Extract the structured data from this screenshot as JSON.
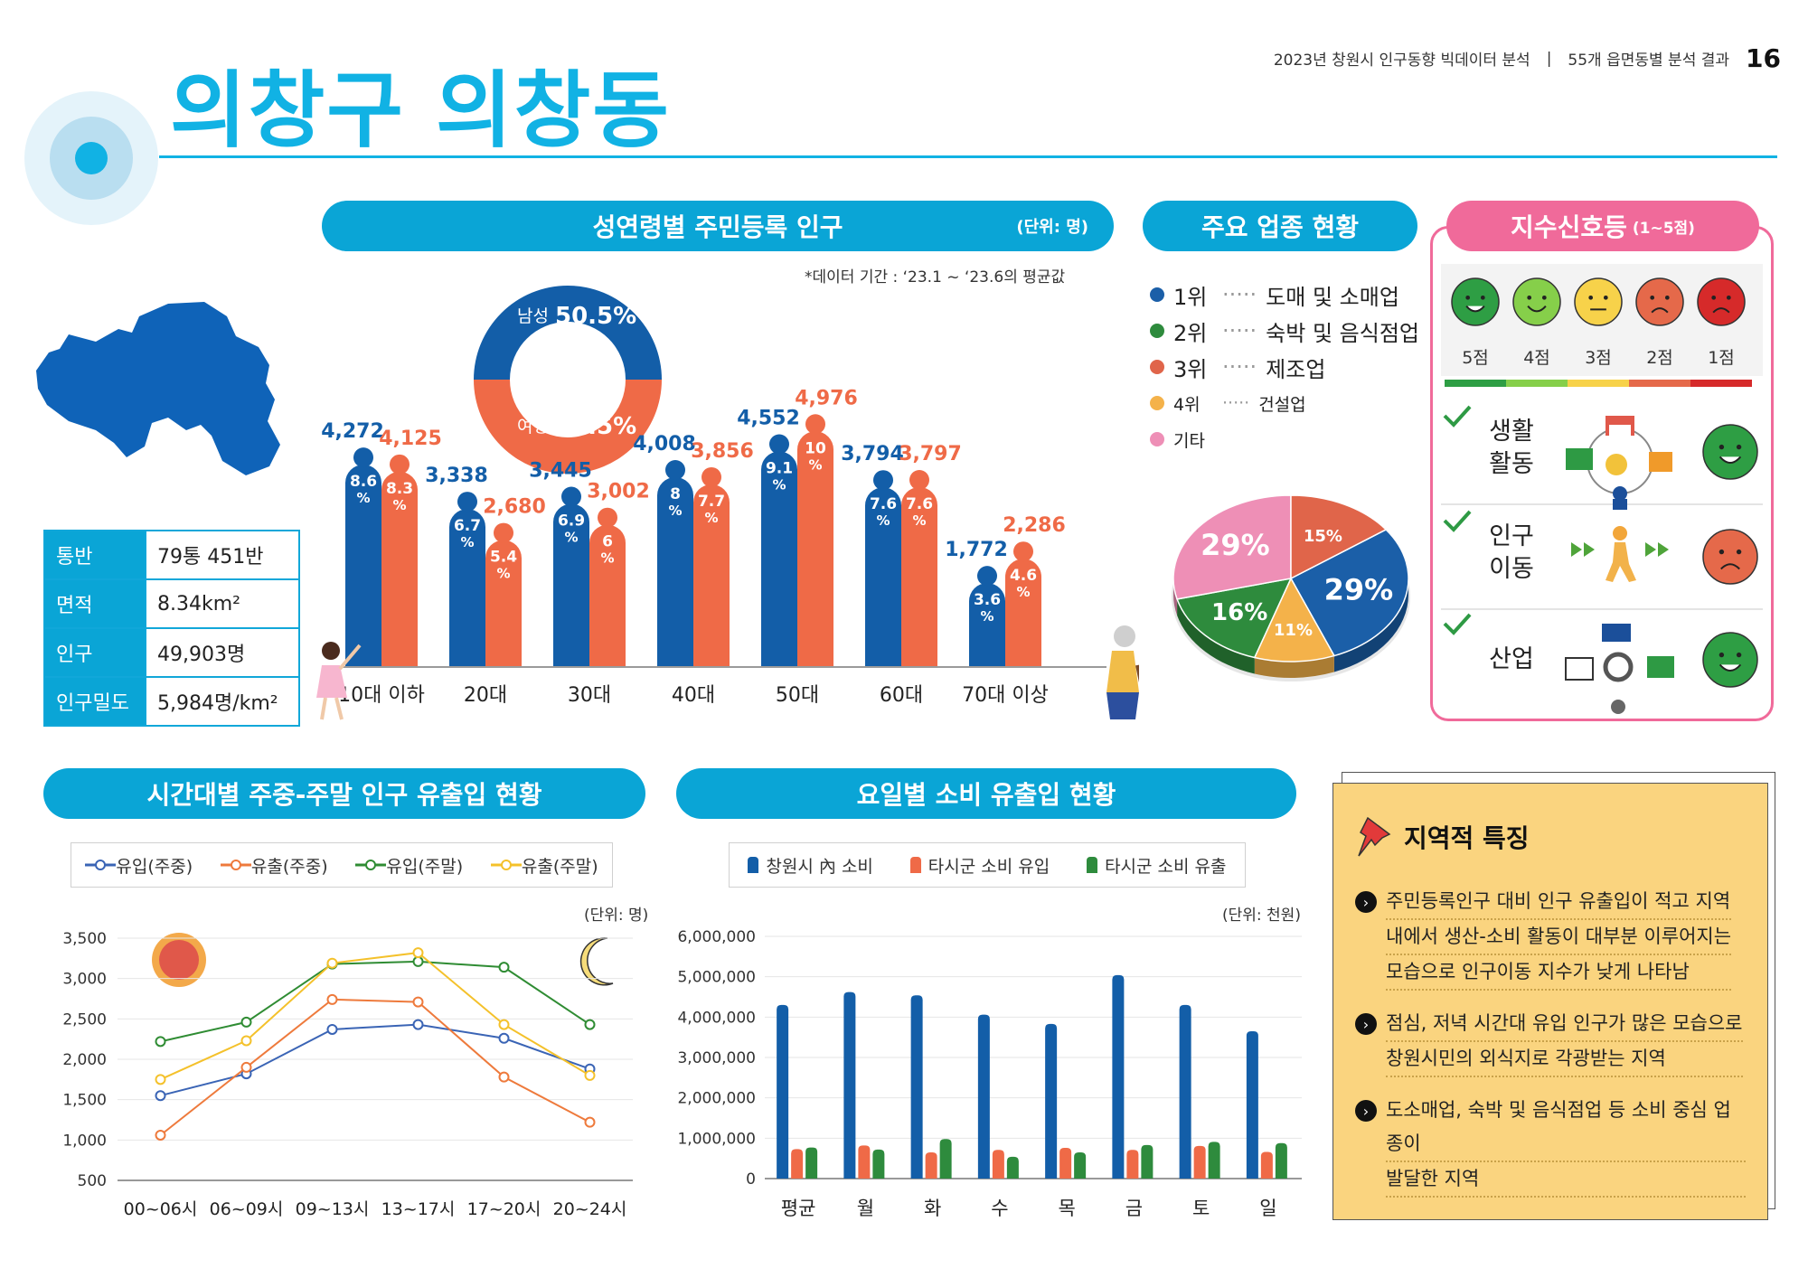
{
  "header": {
    "doc_title": "2023년 창원시 인구동향 빅데이터 분석",
    "section": "55개 읍면동별 분석 결과",
    "page": "16"
  },
  "title": "의창구 의창동",
  "info": [
    {
      "key": "통반",
      "value": "79통 451반"
    },
    {
      "key": "면적",
      "value": "8.34km²"
    },
    {
      "key": "인구",
      "value": "49,903명"
    },
    {
      "key": "인구밀도",
      "value": "5,984명/km²"
    }
  ],
  "population": {
    "title": "성연령별 주민등록 인구",
    "unit": "(단위: 명)",
    "period_note": "*데이터 기간 : ‘23.1 ~ ‘23.6의 평균값",
    "male_label": "남성",
    "male_pct": "50.5%",
    "female_label": "여성",
    "female_pct": "49.5%",
    "colors": {
      "male": "#135ea8",
      "female": "#ef6a47"
    }
  },
  "industry": {
    "title": "주요 업종 현황",
    "legend": [
      {
        "rank": "1위",
        "name": "도매 및 소매업",
        "color": "#1b5fa8"
      },
      {
        "rank": "2위",
        "name": "숙박 및 음식점업",
        "color": "#2e8b3d"
      },
      {
        "rank": "3위",
        "name": "제조업",
        "color": "#e0654a"
      },
      {
        "rank": "4위",
        "name": "건설업",
        "color": "#f4b24a"
      },
      {
        "rank": "기타",
        "name": "",
        "color": "#ee8fb6"
      }
    ]
  },
  "signal": {
    "title": "지수신호등",
    "range": "(1~5점)",
    "scores": [
      "5점",
      "4점",
      "3점",
      "2점",
      "1점"
    ],
    "face_colors": [
      "#2e9e44",
      "#86cf4a",
      "#f7d24a",
      "#e5694a",
      "#d62a2a"
    ],
    "items": [
      {
        "label1": "생활",
        "label2": "활동",
        "score": 5
      },
      {
        "label1": "인구",
        "label2": "이동",
        "score": 2
      },
      {
        "label1": "산업",
        "label2": "",
        "score": 5
      }
    ]
  },
  "flow": {
    "title": "시간대별 주중-주말 인구 유출입 현황",
    "unit": "(단위: 명)",
    "legend": [
      "유입(주중)",
      "유출(주중)",
      "유입(주말)",
      "유출(주말)"
    ]
  },
  "consumption": {
    "title": "요일별 소비 유출입 현황",
    "unit": "(단위: 천원)",
    "legend": [
      "창원시 內 소비",
      "타시군 소비 유입",
      "타시군 소비 유출"
    ]
  },
  "features": {
    "title": "지역적 특징",
    "bullets": [
      [
        "주민등록인구 대비 인구 유출입이 적고 지역",
        "내에서 생산-소비 활동이 대부분 이루어지는",
        "모습으로 인구이동 지수가 낮게 나타남"
      ],
      [
        "점심, 저녁 시간대 유입 인구가 많은 모습으로",
        "창원시민의 외식지로 각광받는 지역"
      ],
      [
        "도소매업, 숙박 및 음식점업 등 소비 중심 업종이",
        "발달한 지역"
      ]
    ]
  },
  "chart_data": [
    {
      "type": "bar",
      "title": "성연령별 주민등록 인구",
      "categories": [
        "10대 이하",
        "20대",
        "30대",
        "40대",
        "50대",
        "60대",
        "70대 이상"
      ],
      "series": [
        {
          "name": "남성",
          "values": [
            4272,
            3338,
            3445,
            4008,
            4552,
            3794,
            1772
          ],
          "value_labels": [
            "4,272",
            "3,338",
            "3,445",
            "4,008",
            "4,552",
            "3,794",
            "1,772"
          ],
          "pct_labels": [
            "8.6",
            "6.7",
            "6.9",
            "8",
            "9.1",
            "7.6",
            "3.6"
          ]
        },
        {
          "name": "여성",
          "values": [
            4125,
            2680,
            3002,
            3856,
            4976,
            3797,
            2286
          ],
          "value_labels": [
            "4,125",
            "2,680",
            "3,002",
            "3,856",
            "4,976",
            "3,797",
            "2,286"
          ],
          "pct_labels": [
            "8.3",
            "5.4",
            "6",
            "7.7",
            "10",
            "7.6",
            "4.6"
          ]
        }
      ]
    },
    {
      "type": "pie",
      "title": "주요 업종 현황",
      "slices": [
        {
          "name": "1위",
          "value": 29,
          "label": "29%"
        },
        {
          "name": "4위",
          "value": 11,
          "label": "11%"
        },
        {
          "name": "2위",
          "value": 16,
          "label": "16%"
        },
        {
          "name": "기타",
          "value": 29,
          "label": "29%"
        },
        {
          "name": "3위",
          "value": 15,
          "label": "15%"
        }
      ]
    },
    {
      "type": "line",
      "title": "시간대별 주중-주말 인구 유출입 현황",
      "x": [
        "00~06시",
        "06~09시",
        "09~13시",
        "13~17시",
        "17~20시",
        "20~24시"
      ],
      "ylim": [
        500,
        3500
      ],
      "yticks": [
        "3,500",
        "3,000",
        "2,500",
        "2,000",
        "1,500",
        "1,000",
        "500"
      ],
      "series": [
        {
          "name": "유입(주중)",
          "color": "#3a64b5",
          "values": [
            1550,
            1820,
            2370,
            2430,
            2260,
            1880
          ]
        },
        {
          "name": "유출(주중)",
          "color": "#ee7a3c",
          "values": [
            1060,
            1900,
            2740,
            2710,
            1780,
            1220
          ]
        },
        {
          "name": "유입(주말)",
          "color": "#2f8c33",
          "values": [
            2220,
            2460,
            3180,
            3210,
            3140,
            2430
          ]
        },
        {
          "name": "유출(주말)",
          "color": "#f4c12b",
          "values": [
            1750,
            2230,
            3190,
            3320,
            2430,
            1800
          ]
        }
      ]
    },
    {
      "type": "bar",
      "title": "요일별 소비 유출입 현황",
      "categories": [
        "평균",
        "월",
        "화",
        "수",
        "목",
        "금",
        "토",
        "일"
      ],
      "ylim": [
        0,
        6000000
      ],
      "yticks": [
        "6,000,000",
        "5,000,000",
        "4,000,000",
        "3,000,000",
        "2,000,000",
        "1,000,000",
        "0"
      ],
      "series": [
        {
          "name": "창원시 內 소비",
          "color": "#135ea8",
          "values": [
            4300000,
            4620000,
            4540000,
            4060000,
            3830000,
            5040000,
            4300000,
            3650000
          ]
        },
        {
          "name": "타시군 소비 유입",
          "color": "#ef6a47",
          "values": [
            730000,
            820000,
            650000,
            710000,
            760000,
            710000,
            810000,
            660000
          ]
        },
        {
          "name": "타시군 소비 유출",
          "color": "#2e8b3d",
          "values": [
            770000,
            720000,
            980000,
            540000,
            650000,
            830000,
            910000,
            880000
          ]
        }
      ]
    }
  ]
}
